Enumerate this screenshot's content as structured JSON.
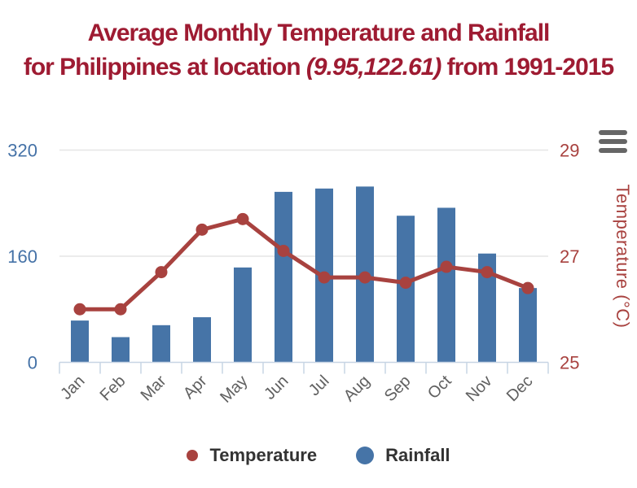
{
  "page": {
    "background": "#ffffff"
  },
  "title": {
    "line1": "Average Monthly Temperature and Rainfall",
    "line2_prefix": "for Philippines at location ",
    "line2_italic": "(9.95,122.61)",
    "line2_suffix": " from 1991-2015",
    "color": "#9e1b32"
  },
  "menu_icon": {
    "name": "chart-context-menu",
    "color": "#666666"
  },
  "chart_data": {
    "type": "combo",
    "title": "Average Monthly Temperature and Rainfall for Philippines at location (9.95,122.61) from 1991-2015",
    "categories": [
      "Jan",
      "Feb",
      "Mar",
      "Apr",
      "May",
      "Jun",
      "Jul",
      "Aug",
      "Sep",
      "Oct",
      "Nov",
      "Dec"
    ],
    "series": [
      {
        "name": "Temperature",
        "type": "line",
        "axis": "right",
        "color": "#a8423f",
        "values": [
          26.0,
          26.0,
          26.7,
          27.5,
          27.7,
          27.1,
          26.6,
          26.6,
          26.5,
          26.8,
          26.7,
          26.4
        ]
      },
      {
        "name": "Rainfall",
        "type": "bar",
        "axis": "left",
        "color": "#4674a7",
        "values": [
          63,
          38,
          56,
          68,
          143,
          257,
          262,
          265,
          221,
          233,
          164,
          112
        ]
      }
    ],
    "axes": {
      "x": {
        "tick_label_rotation": -45,
        "label_color": "#606060"
      },
      "y_left": {
        "range": [
          0,
          320
        ],
        "ticks": [
          0,
          160,
          320
        ],
        "color": "#4572a7"
      },
      "y_right": {
        "range": [
          25,
          29
        ],
        "ticks": [
          25,
          27,
          29
        ],
        "title": "Temperature (°C)",
        "color": "#a8423f"
      }
    },
    "grid": true,
    "gridline_color": "#e6e6e6",
    "axis_line_color": "#c7d5e4",
    "legend_position": "bottom"
  },
  "legend": {
    "items": [
      {
        "label": "Temperature",
        "marker": "circle-small",
        "color": "#a8423f"
      },
      {
        "label": "Rainfall",
        "marker": "circle-large",
        "color": "#4674a7"
      }
    ]
  }
}
